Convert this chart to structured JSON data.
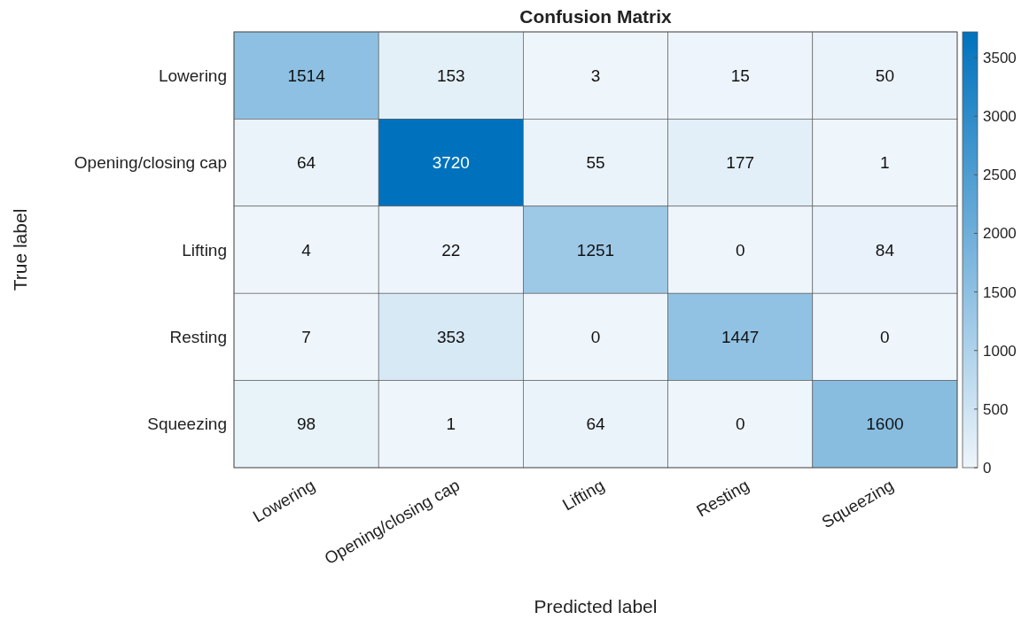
{
  "chart_data": {
    "type": "heatmap",
    "title": "Confusion Matrix",
    "xlabel": "Predicted label",
    "ylabel": "True label",
    "categories": [
      "Lowering",
      "Opening/closing cap",
      "Lifting",
      "Resting",
      "Squeezing"
    ],
    "y_categories": [
      "Lowering",
      "Opening/closing cap",
      "Lifting",
      "Resting",
      "Squeezing"
    ],
    "cells": [
      [
        1514,
        153,
        3,
        15,
        50
      ],
      [
        64,
        3720,
        55,
        177,
        1
      ],
      [
        4,
        22,
        1251,
        0,
        84
      ],
      [
        7,
        353,
        0,
        1447,
        0
      ],
      [
        98,
        1,
        64,
        0,
        1600
      ]
    ],
    "clim": [
      0,
      3720
    ],
    "cticks": [
      0,
      500,
      1000,
      1500,
      2000,
      2500,
      3000,
      3500
    ],
    "data_labels": true
  }
}
